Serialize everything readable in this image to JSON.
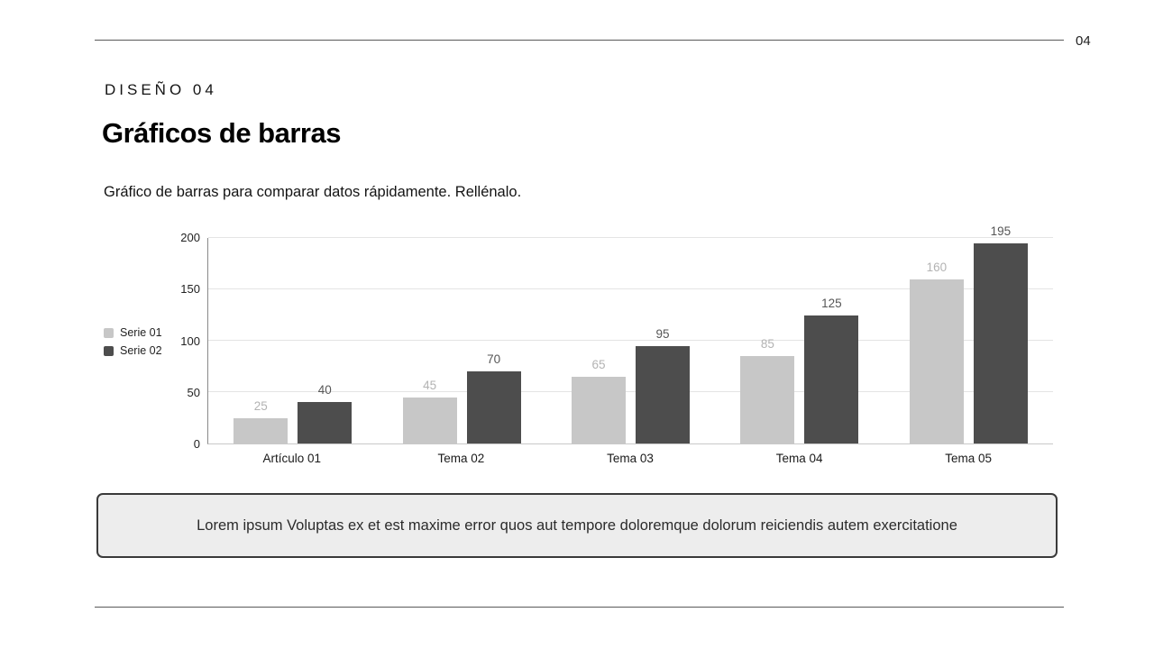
{
  "page_number": "04",
  "header": {
    "eyebrow": "DISEÑO 04",
    "title": "Gráficos de barras",
    "subtitle": "Gráfico de barras para comparar datos rápidamente. Rellénalo."
  },
  "footer_note": "Lorem ipsum Voluptas ex et est maxime error quos aut tempore doloremque dolorum reiciendis autem exercitatione",
  "chart_data": {
    "type": "bar",
    "title": "",
    "xlabel": "",
    "ylabel": "",
    "categories": [
      "Artículo 01",
      "Tema 02",
      "Tema 03",
      "Tema 04",
      "Tema 05"
    ],
    "series": [
      {
        "name": "Serie 01",
        "values": [
          25,
          45,
          65,
          85,
          160
        ],
        "color": "#c7c7c7",
        "label_color": "#b3b3b3"
      },
      {
        "name": "Serie 02",
        "values": [
          40,
          70,
          95,
          125,
          195
        ],
        "color": "#4d4d4d",
        "label_color": "#565656"
      }
    ],
    "ylim": [
      0,
      200
    ],
    "yticks": [
      0,
      50,
      100,
      150,
      200
    ],
    "grid": true,
    "legend_position": "left"
  }
}
